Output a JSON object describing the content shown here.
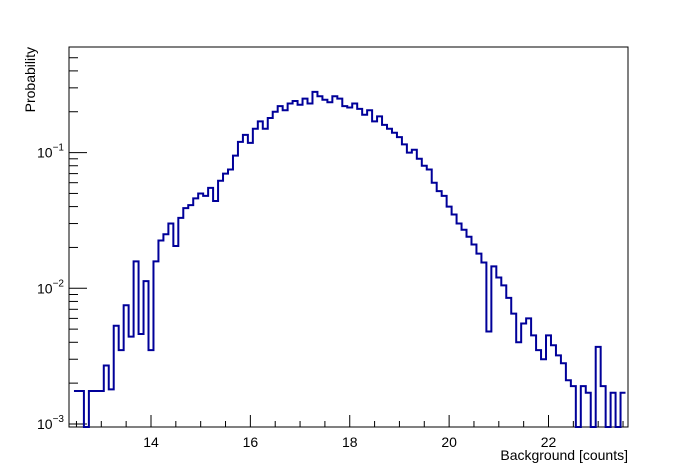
{
  "chart_data": {
    "type": "histogram",
    "title": "",
    "xlabel": "Background [counts]",
    "ylabel": "Probability",
    "xlim": [
      12.35,
      23.6
    ],
    "ylim": [
      0.00095,
      0.6
    ],
    "y_scale": "log",
    "grid": false,
    "x_ticks": [
      "14",
      "16",
      "18",
      "20",
      "22"
    ],
    "y_tick_base": "10",
    "y_tick_exponents": [
      "−3",
      "−2",
      "−1"
    ],
    "line_color": "#000099",
    "bin_width": 0.1,
    "bins": [
      {
        "x": 12.5,
        "y": 0.00175
      },
      {
        "x": 12.6,
        "y": 0.00175
      },
      {
        "x": 12.7,
        "y": 0.00095
      },
      {
        "x": 12.8,
        "y": 0.00175
      },
      {
        "x": 12.9,
        "y": 0.00175
      },
      {
        "x": 13.0,
        "y": 0.00175
      },
      {
        "x": 13.1,
        "y": 0.0027
      },
      {
        "x": 13.2,
        "y": 0.0018
      },
      {
        "x": 13.3,
        "y": 0.0053
      },
      {
        "x": 13.4,
        "y": 0.0035
      },
      {
        "x": 13.5,
        "y": 0.0075
      },
      {
        "x": 13.6,
        "y": 0.0044
      },
      {
        "x": 13.7,
        "y": 0.0158
      },
      {
        "x": 13.8,
        "y": 0.0046
      },
      {
        "x": 13.9,
        "y": 0.0113
      },
      {
        "x": 14.0,
        "y": 0.0035
      },
      {
        "x": 14.1,
        "y": 0.0158
      },
      {
        "x": 14.2,
        "y": 0.0225
      },
      {
        "x": 14.3,
        "y": 0.025
      },
      {
        "x": 14.4,
        "y": 0.03
      },
      {
        "x": 14.5,
        "y": 0.0205
      },
      {
        "x": 14.6,
        "y": 0.033
      },
      {
        "x": 14.7,
        "y": 0.039
      },
      {
        "x": 14.8,
        "y": 0.041
      },
      {
        "x": 14.9,
        "y": 0.046
      },
      {
        "x": 15.0,
        "y": 0.05
      },
      {
        "x": 15.1,
        "y": 0.048
      },
      {
        "x": 15.2,
        "y": 0.055
      },
      {
        "x": 15.3,
        "y": 0.044
      },
      {
        "x": 15.4,
        "y": 0.062
      },
      {
        "x": 15.5,
        "y": 0.07
      },
      {
        "x": 15.6,
        "y": 0.075
      },
      {
        "x": 15.7,
        "y": 0.095
      },
      {
        "x": 15.8,
        "y": 0.12
      },
      {
        "x": 15.9,
        "y": 0.135
      },
      {
        "x": 16.0,
        "y": 0.118
      },
      {
        "x": 16.1,
        "y": 0.15
      },
      {
        "x": 16.2,
        "y": 0.17
      },
      {
        "x": 16.3,
        "y": 0.15
      },
      {
        "x": 16.4,
        "y": 0.18
      },
      {
        "x": 16.5,
        "y": 0.2
      },
      {
        "x": 16.6,
        "y": 0.22
      },
      {
        "x": 16.7,
        "y": 0.205
      },
      {
        "x": 16.8,
        "y": 0.23
      },
      {
        "x": 16.9,
        "y": 0.24
      },
      {
        "x": 17.0,
        "y": 0.225
      },
      {
        "x": 17.1,
        "y": 0.25
      },
      {
        "x": 17.2,
        "y": 0.23
      },
      {
        "x": 17.3,
        "y": 0.28
      },
      {
        "x": 17.4,
        "y": 0.26
      },
      {
        "x": 17.5,
        "y": 0.245
      },
      {
        "x": 17.6,
        "y": 0.235
      },
      {
        "x": 17.7,
        "y": 0.26
      },
      {
        "x": 17.8,
        "y": 0.25
      },
      {
        "x": 17.9,
        "y": 0.22
      },
      {
        "x": 18.0,
        "y": 0.215
      },
      {
        "x": 18.1,
        "y": 0.23
      },
      {
        "x": 18.2,
        "y": 0.21
      },
      {
        "x": 18.3,
        "y": 0.19
      },
      {
        "x": 18.4,
        "y": 0.205
      },
      {
        "x": 18.5,
        "y": 0.17
      },
      {
        "x": 18.6,
        "y": 0.185
      },
      {
        "x": 18.7,
        "y": 0.16
      },
      {
        "x": 18.8,
        "y": 0.15
      },
      {
        "x": 18.9,
        "y": 0.14
      },
      {
        "x": 19.0,
        "y": 0.13
      },
      {
        "x": 19.1,
        "y": 0.115
      },
      {
        "x": 19.2,
        "y": 0.1
      },
      {
        "x": 19.3,
        "y": 0.105
      },
      {
        "x": 19.4,
        "y": 0.09
      },
      {
        "x": 19.5,
        "y": 0.08
      },
      {
        "x": 19.6,
        "y": 0.075
      },
      {
        "x": 19.7,
        "y": 0.06
      },
      {
        "x": 19.8,
        "y": 0.052
      },
      {
        "x": 19.9,
        "y": 0.048
      },
      {
        "x": 20.0,
        "y": 0.04
      },
      {
        "x": 20.1,
        "y": 0.035
      },
      {
        "x": 20.2,
        "y": 0.03
      },
      {
        "x": 20.3,
        "y": 0.027
      },
      {
        "x": 20.4,
        "y": 0.024
      },
      {
        "x": 20.5,
        "y": 0.021
      },
      {
        "x": 20.6,
        "y": 0.018
      },
      {
        "x": 20.7,
        "y": 0.0155
      },
      {
        "x": 20.8,
        "y": 0.0048
      },
      {
        "x": 20.9,
        "y": 0.0145
      },
      {
        "x": 21.0,
        "y": 0.012
      },
      {
        "x": 21.1,
        "y": 0.0105
      },
      {
        "x": 21.2,
        "y": 0.0085
      },
      {
        "x": 21.3,
        "y": 0.0065
      },
      {
        "x": 21.4,
        "y": 0.004
      },
      {
        "x": 21.5,
        "y": 0.0055
      },
      {
        "x": 21.6,
        "y": 0.006
      },
      {
        "x": 21.7,
        "y": 0.0045
      },
      {
        "x": 21.8,
        "y": 0.0035
      },
      {
        "x": 21.9,
        "y": 0.003
      },
      {
        "x": 22.0,
        "y": 0.0045
      },
      {
        "x": 22.1,
        "y": 0.0038
      },
      {
        "x": 22.2,
        "y": 0.0032
      },
      {
        "x": 22.3,
        "y": 0.0028
      },
      {
        "x": 22.4,
        "y": 0.0021
      },
      {
        "x": 22.5,
        "y": 0.0019
      },
      {
        "x": 22.6,
        "y": 0.00095
      },
      {
        "x": 22.7,
        "y": 0.0019
      },
      {
        "x": 22.8,
        "y": 0.0017
      },
      {
        "x": 22.9,
        "y": 0.00095
      },
      {
        "x": 23.0,
        "y": 0.0037
      },
      {
        "x": 23.1,
        "y": 0.0019
      },
      {
        "x": 23.2,
        "y": 0.00095
      },
      {
        "x": 23.3,
        "y": 0.0017
      },
      {
        "x": 23.4,
        "y": 0.00095
      },
      {
        "x": 23.5,
        "y": 0.0017
      }
    ]
  }
}
